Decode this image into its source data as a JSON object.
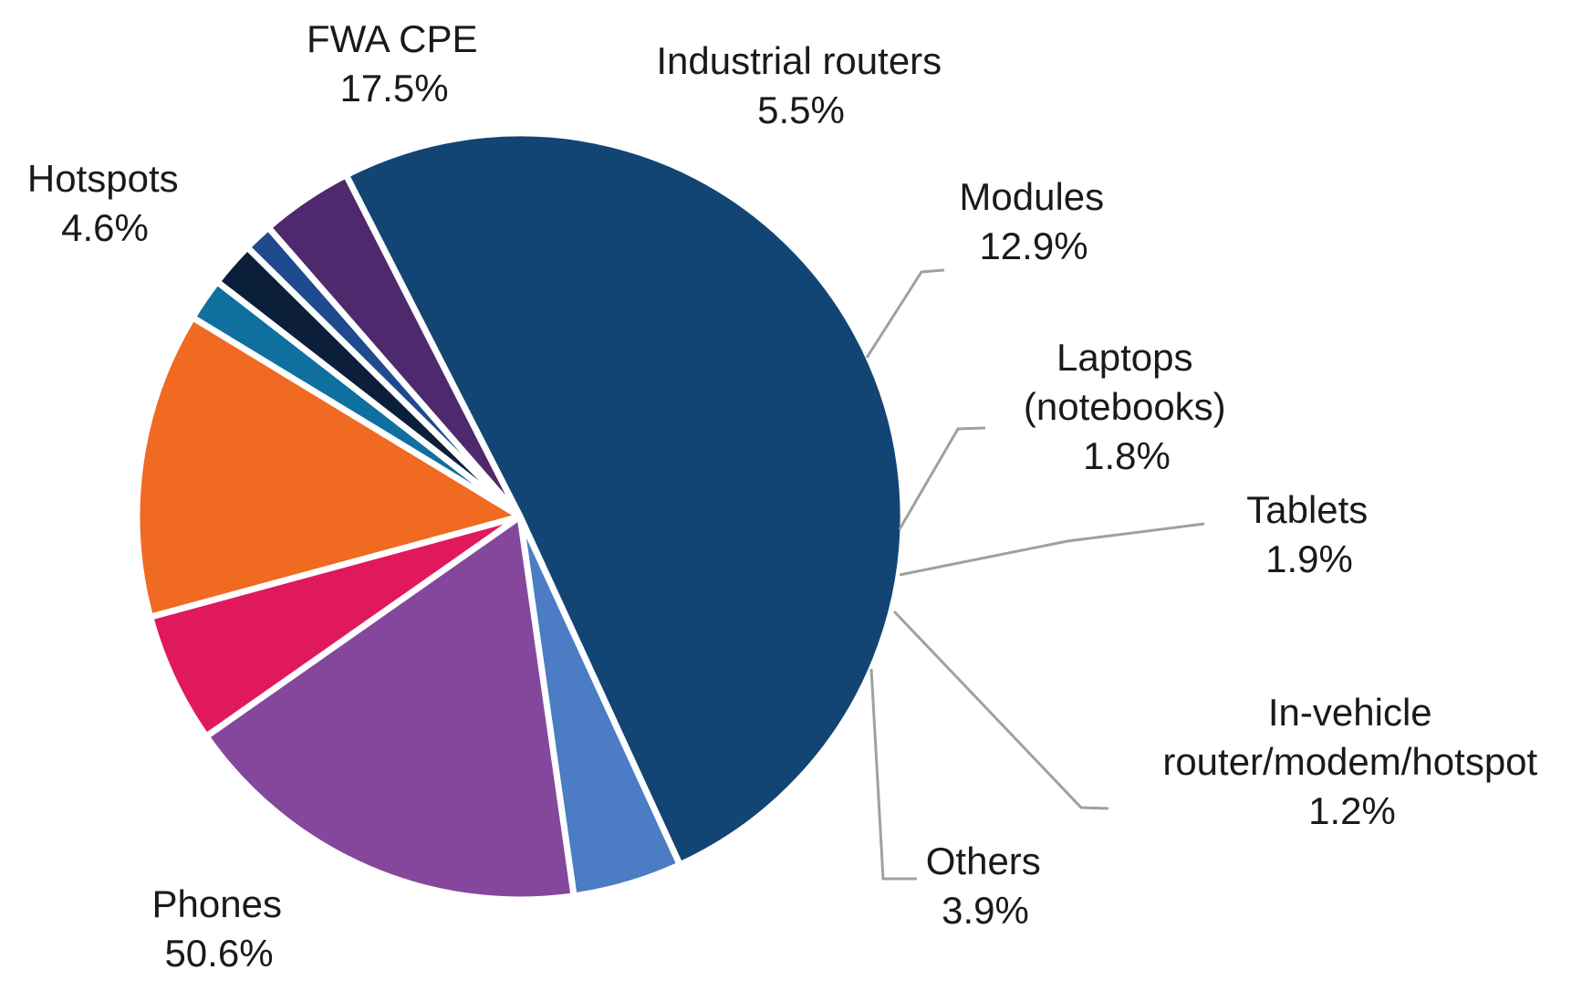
{
  "chart_data": {
    "type": "pie",
    "title": "",
    "series": [
      {
        "label": "Phones",
        "value": 50.6,
        "display": "50.6%",
        "color": "#124574"
      },
      {
        "label": "Hotspots",
        "value": 4.6,
        "display": "4.6%",
        "color": "#4b7cc4"
      },
      {
        "label": "FWA CPE",
        "value": 17.5,
        "display": "17.5%",
        "color": "#85479b"
      },
      {
        "label": "Industrial routers",
        "value": 5.5,
        "display": "5.5%",
        "color": "#e0195c"
      },
      {
        "label": "Modules",
        "value": 12.9,
        "display": "12.9%",
        "color": "#f06a22"
      },
      {
        "label": "Laptops (notebooks)",
        "value": 1.8,
        "display": "1.8%",
        "color": "#0f6f9f"
      },
      {
        "label": "Tablets",
        "value": 1.9,
        "display": "1.9%",
        "color": "#0b1f3b"
      },
      {
        "label": "In-vehicle router/modem/hotspot",
        "value": 1.2,
        "display": "1.2%",
        "color": "#1f4a8e"
      },
      {
        "label": "Others",
        "value": 3.9,
        "display": "3.9%",
        "color": "#4e296e"
      }
    ],
    "legend": "none"
  },
  "labels": {
    "phones": {
      "lines": [
        "Phones"
      ],
      "value": "50.6%"
    },
    "hotspots": {
      "lines": [
        "Hotspots"
      ],
      "value": "4.6%"
    },
    "fwa": {
      "lines": [
        "FWA CPE"
      ],
      "value": "17.5%"
    },
    "industrial": {
      "lines": [
        "Industrial routers"
      ],
      "value": "5.5%"
    },
    "modules": {
      "lines": [
        "Modules"
      ],
      "value": "12.9%"
    },
    "laptops": {
      "lines": [
        "Laptops",
        "(notebooks)"
      ],
      "value": "1.8%"
    },
    "tablets": {
      "lines": [
        "Tablets"
      ],
      "value": "1.9%"
    },
    "invehicle": {
      "lines": [
        "In-vehicle",
        "router/modem/hotspot"
      ],
      "value": "1.2%"
    },
    "others": {
      "lines": [
        "Others"
      ],
      "value": "3.9%"
    }
  }
}
